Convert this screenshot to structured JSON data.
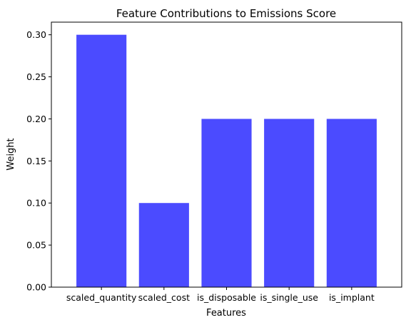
{
  "chart_data": {
    "type": "bar",
    "title": "Feature Contributions to Emissions Score",
    "xlabel": "Features",
    "ylabel": "Weight",
    "categories": [
      "scaled_quantity",
      "scaled_cost",
      "is_disposable",
      "is_single_use",
      "is_implant"
    ],
    "values": [
      0.3,
      0.1,
      0.2,
      0.2,
      0.2
    ],
    "ylim": [
      0,
      0.315
    ],
    "yticks": [
      "0.00",
      "0.05",
      "0.10",
      "0.15",
      "0.20",
      "0.25",
      "0.30"
    ],
    "bar_color": "#4b4bff",
    "grid": false,
    "legend": "none"
  }
}
